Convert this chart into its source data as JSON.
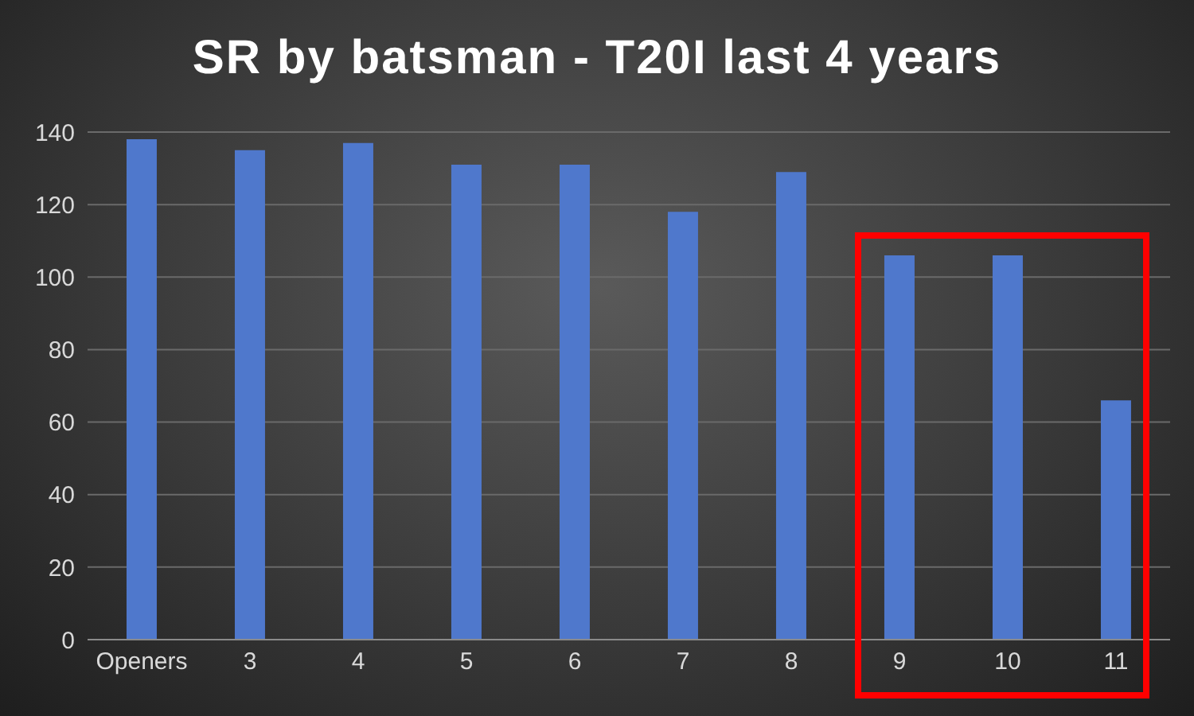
{
  "chart_data": {
    "type": "bar",
    "title": "SR by batsman - T20I last 4 years",
    "categories": [
      "Openers",
      "3",
      "4",
      "5",
      "6",
      "7",
      "8",
      "9",
      "10",
      "11"
    ],
    "values": [
      138,
      135,
      137,
      131,
      131,
      118,
      129,
      106,
      106,
      66
    ],
    "color": "#4f78cc",
    "ylim": [
      0,
      140
    ],
    "yticks": [
      0,
      20,
      40,
      60,
      80,
      100,
      120,
      140
    ],
    "grid": "y",
    "legend": false
  }
}
